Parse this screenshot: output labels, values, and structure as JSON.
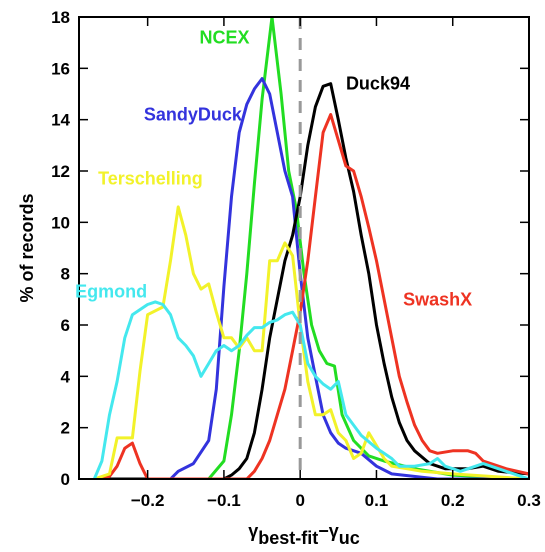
{
  "chart_data": {
    "type": "line",
    "xlabel": {
      "gamma1": "γ",
      "sub1": "best-fit",
      "dash": "−",
      "gamma2": "γ",
      "sub2": "uc"
    },
    "ylabel": "% of records",
    "xlim": [
      -0.29,
      0.3
    ],
    "ylim": [
      0,
      18
    ],
    "xticks": [
      -0.2,
      -0.1,
      0,
      0.1,
      0.2,
      0.3
    ],
    "xtick_labels": [
      "−0.2",
      "−0.1",
      "0",
      "0.1",
      "0.2",
      "0.3"
    ],
    "yticks": [
      0,
      2,
      4,
      6,
      8,
      10,
      12,
      14,
      16,
      18
    ],
    "ytick_labels": [
      "0",
      "2",
      "4",
      "6",
      "8",
      "10",
      "12",
      "14",
      "16",
      "18"
    ],
    "grid": false,
    "legend": "none",
    "reference_line": {
      "x": 0,
      "style": "dashed",
      "color": "#999999"
    },
    "series": [
      {
        "name": "NCEX",
        "color": "#22dd22",
        "label_anchor": [
          -0.132,
          17.2
        ],
        "points": [
          [
            -0.27,
            0
          ],
          [
            -0.12,
            0
          ],
          [
            -0.1,
            0.7
          ],
          [
            -0.09,
            2.5
          ],
          [
            -0.08,
            5
          ],
          [
            -0.07,
            8
          ],
          [
            -0.06,
            11.5
          ],
          [
            -0.05,
            14.8
          ],
          [
            -0.037,
            18
          ],
          [
            -0.025,
            15
          ],
          [
            -0.015,
            12
          ],
          [
            -0.005,
            10.5
          ],
          [
            0.005,
            8
          ],
          [
            0.015,
            6
          ],
          [
            0.025,
            5
          ],
          [
            0.035,
            4.5
          ],
          [
            0.045,
            4.4
          ],
          [
            0.055,
            2.5
          ],
          [
            0.07,
            1.5
          ],
          [
            0.09,
            0.9
          ],
          [
            0.11,
            0.7
          ],
          [
            0.15,
            0.4
          ],
          [
            0.2,
            0.15
          ],
          [
            0.3,
            0
          ]
        ]
      },
      {
        "name": "SandyDuck",
        "color": "#3333dd",
        "label_anchor": [
          -0.205,
          14.2
        ],
        "points": [
          [
            -0.27,
            0
          ],
          [
            -0.17,
            0
          ],
          [
            -0.16,
            0.3
          ],
          [
            -0.14,
            0.6
          ],
          [
            -0.12,
            1.5
          ],
          [
            -0.11,
            3.5
          ],
          [
            -0.1,
            7.5
          ],
          [
            -0.09,
            11
          ],
          [
            -0.08,
            13.5
          ],
          [
            -0.07,
            14.6
          ],
          [
            -0.06,
            15.2
          ],
          [
            -0.05,
            15.6
          ],
          [
            -0.04,
            15
          ],
          [
            -0.03,
            13.5
          ],
          [
            -0.02,
            12
          ],
          [
            -0.01,
            11
          ],
          [
            0,
            8
          ],
          [
            0.01,
            5.5
          ],
          [
            0.02,
            4
          ],
          [
            0.03,
            2.5
          ],
          [
            0.04,
            1.8
          ],
          [
            0.05,
            1.4
          ],
          [
            0.06,
            1.2
          ],
          [
            0.08,
            1
          ],
          [
            0.1,
            0.5
          ],
          [
            0.12,
            0.2
          ],
          [
            0.18,
            0
          ],
          [
            0.3,
            0
          ]
        ]
      },
      {
        "name": "Duck94",
        "color": "#000000",
        "label_anchor": [
          0.06,
          15.4
        ],
        "points": [
          [
            -0.27,
            0
          ],
          [
            -0.1,
            0
          ],
          [
            -0.09,
            0.15
          ],
          [
            -0.08,
            0.4
          ],
          [
            -0.07,
            0.8
          ],
          [
            -0.06,
            1.8
          ],
          [
            -0.05,
            3.5
          ],
          [
            -0.04,
            5.5
          ],
          [
            -0.03,
            7
          ],
          [
            -0.02,
            8.5
          ],
          [
            -0.01,
            9.5
          ],
          [
            0,
            11
          ],
          [
            0.01,
            13
          ],
          [
            0.02,
            14.5
          ],
          [
            0.03,
            15.3
          ],
          [
            0.04,
            15.4
          ],
          [
            0.05,
            14
          ],
          [
            0.06,
            12.5
          ],
          [
            0.07,
            11.2
          ],
          [
            0.08,
            9.5
          ],
          [
            0.09,
            8
          ],
          [
            0.1,
            6
          ],
          [
            0.11,
            4.5
          ],
          [
            0.12,
            3.2
          ],
          [
            0.13,
            2.2
          ],
          [
            0.14,
            1.5
          ],
          [
            0.15,
            1.1
          ],
          [
            0.17,
            0.6
          ],
          [
            0.19,
            0.4
          ],
          [
            0.22,
            0.4
          ],
          [
            0.24,
            0.5
          ],
          [
            0.26,
            0.3
          ],
          [
            0.3,
            0.2
          ]
        ]
      },
      {
        "name": "SwashX",
        "color": "#ee3322",
        "label_anchor": [
          0.135,
          7.0
        ],
        "points": [
          [
            -0.27,
            0
          ],
          [
            -0.25,
            0.1
          ],
          [
            -0.24,
            0.5
          ],
          [
            -0.23,
            1.2
          ],
          [
            -0.22,
            1.4
          ],
          [
            -0.21,
            0.6
          ],
          [
            -0.2,
            0
          ],
          [
            -0.07,
            0
          ],
          [
            -0.06,
            0.3
          ],
          [
            -0.05,
            0.8
          ],
          [
            -0.04,
            1.5
          ],
          [
            -0.03,
            2.5
          ],
          [
            -0.02,
            3.5
          ],
          [
            -0.01,
            5
          ],
          [
            0,
            6.5
          ],
          [
            0.01,
            8.5
          ],
          [
            0.02,
            11
          ],
          [
            0.03,
            13.5
          ],
          [
            0.04,
            14.2
          ],
          [
            0.05,
            13.2
          ],
          [
            0.06,
            12.2
          ],
          [
            0.07,
            12
          ],
          [
            0.08,
            11
          ],
          [
            0.09,
            9.8
          ],
          [
            0.1,
            8.5
          ],
          [
            0.11,
            7
          ],
          [
            0.12,
            5.5
          ],
          [
            0.13,
            4
          ],
          [
            0.14,
            3
          ],
          [
            0.15,
            2.1
          ],
          [
            0.16,
            1.5
          ],
          [
            0.17,
            1.1
          ],
          [
            0.18,
            1
          ],
          [
            0.2,
            1.1
          ],
          [
            0.22,
            1.1
          ],
          [
            0.23,
            1
          ],
          [
            0.24,
            0.7
          ],
          [
            0.27,
            0.4
          ],
          [
            0.3,
            0.2
          ]
        ]
      },
      {
        "name": "Terschelling",
        "color": "#f2f22a",
        "label_anchor": [
          -0.265,
          11.7
        ],
        "points": [
          [
            -0.27,
            0
          ],
          [
            -0.25,
            0.2
          ],
          [
            -0.24,
            1.6
          ],
          [
            -0.22,
            1.6
          ],
          [
            -0.21,
            4.2
          ],
          [
            -0.2,
            6.4
          ],
          [
            -0.18,
            6.7
          ],
          [
            -0.17,
            8.5
          ],
          [
            -0.16,
            10.6
          ],
          [
            -0.15,
            9.5
          ],
          [
            -0.14,
            8
          ],
          [
            -0.13,
            7.4
          ],
          [
            -0.12,
            7.6
          ],
          [
            -0.11,
            6.5
          ],
          [
            -0.1,
            5.5
          ],
          [
            -0.09,
            5.5
          ],
          [
            -0.08,
            5.1
          ],
          [
            -0.07,
            5.5
          ],
          [
            -0.06,
            5
          ],
          [
            -0.05,
            5
          ],
          [
            -0.04,
            8.5
          ],
          [
            -0.03,
            8.5
          ],
          [
            -0.02,
            9.2
          ],
          [
            -0.01,
            8.7
          ],
          [
            0,
            6
          ],
          [
            0.01,
            3.8
          ],
          [
            0.02,
            2.5
          ],
          [
            0.03,
            2.5
          ],
          [
            0.04,
            2.7
          ],
          [
            0.05,
            1.8
          ],
          [
            0.06,
            1.5
          ],
          [
            0.07,
            0.8
          ],
          [
            0.08,
            1
          ],
          [
            0.09,
            1.8
          ],
          [
            0.1,
            1.3
          ],
          [
            0.11,
            0.8
          ],
          [
            0.12,
            0.5
          ],
          [
            0.16,
            0.3
          ],
          [
            0.2,
            0.2
          ],
          [
            0.3,
            0
          ]
        ]
      },
      {
        "name": "Egmond",
        "color": "#44e8ee",
        "label_anchor": [
          -0.295,
          7.3
        ],
        "points": [
          [
            -0.27,
            0
          ],
          [
            -0.26,
            0.7
          ],
          [
            -0.25,
            2.5
          ],
          [
            -0.24,
            3.8
          ],
          [
            -0.23,
            5.5
          ],
          [
            -0.22,
            6.4
          ],
          [
            -0.21,
            6.6
          ],
          [
            -0.2,
            6.8
          ],
          [
            -0.19,
            6.9
          ],
          [
            -0.18,
            6.8
          ],
          [
            -0.17,
            6.4
          ],
          [
            -0.16,
            5.5
          ],
          [
            -0.15,
            5.2
          ],
          [
            -0.14,
            4.8
          ],
          [
            -0.13,
            4
          ],
          [
            -0.12,
            4.5
          ],
          [
            -0.11,
            5
          ],
          [
            -0.1,
            5.2
          ],
          [
            -0.09,
            5
          ],
          [
            -0.08,
            5.2
          ],
          [
            -0.07,
            5.6
          ],
          [
            -0.06,
            5.9
          ],
          [
            -0.05,
            5.9
          ],
          [
            -0.04,
            6.1
          ],
          [
            -0.03,
            6.2
          ],
          [
            -0.02,
            6.4
          ],
          [
            -0.01,
            6.5
          ],
          [
            0,
            6
          ],
          [
            0.01,
            4.5
          ],
          [
            0.02,
            4
          ],
          [
            0.03,
            3.7
          ],
          [
            0.04,
            3.5
          ],
          [
            0.05,
            3.8
          ],
          [
            0.06,
            2.5
          ],
          [
            0.07,
            2.1
          ],
          [
            0.08,
            1.7
          ],
          [
            0.1,
            1.2
          ],
          [
            0.12,
            0.8
          ],
          [
            0.13,
            0.5
          ],
          [
            0.15,
            0.5
          ],
          [
            0.17,
            0.6
          ],
          [
            0.18,
            0.8
          ],
          [
            0.19,
            0.5
          ],
          [
            0.21,
            0.3
          ],
          [
            0.23,
            0.5
          ],
          [
            0.24,
            0.6
          ],
          [
            0.27,
            0.3
          ],
          [
            0.3,
            0
          ]
        ]
      }
    ]
  }
}
